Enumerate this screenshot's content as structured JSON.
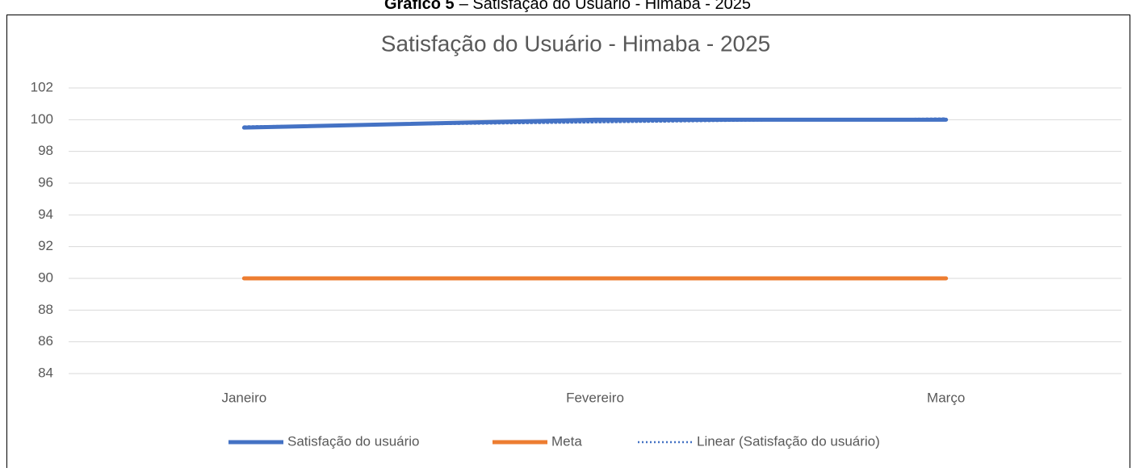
{
  "caption_label": "Gráfico 5",
  "caption_text": "– Satisfação do Usuário - Himaba - 2025",
  "chart_data": {
    "type": "line",
    "title": "Satisfação do Usuário -  Himaba - 2025",
    "categories": [
      "Janeiro",
      "Fevereiro",
      "Março"
    ],
    "series": [
      {
        "name": "Satisfação do usuário",
        "color": "#4472c4",
        "style": "solid",
        "values": [
          99.5,
          100,
          100
        ]
      },
      {
        "name": "Meta",
        "color": "#ed7d31",
        "style": "solid",
        "values": [
          90,
          90,
          90
        ]
      },
      {
        "name": "Linear (Satisfação do usuário)",
        "color": "#4472c4",
        "style": "dotted",
        "values": [
          99.58,
          99.83,
          100.08
        ]
      }
    ],
    "ylim": [
      84,
      102
    ],
    "yticks": [
      84,
      86,
      88,
      90,
      92,
      94,
      96,
      98,
      100,
      102
    ],
    "grid": true,
    "legend": "bottom"
  }
}
